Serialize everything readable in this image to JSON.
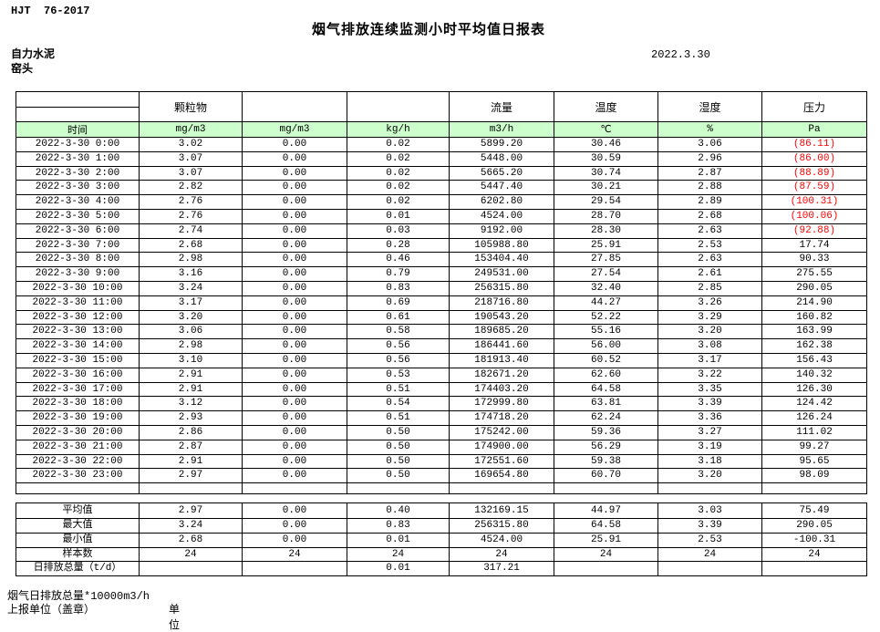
{
  "page": {
    "standard": "HJT  76-2017",
    "title": "烟气排放连续监测小时平均值日报表",
    "date": "2022.3.30",
    "company": "自力水泥",
    "station": "窑头"
  },
  "table": {
    "column_groups": [
      "",
      "颗粒物",
      "",
      "",
      "流量",
      "温度",
      "湿度",
      "压力"
    ],
    "unit_row": [
      "时间",
      "mg/m3",
      "mg/m3",
      "kg/h",
      "m3/h",
      "℃",
      "%",
      "Pa"
    ],
    "rows": [
      [
        "2022-3-30 0:00",
        "3.02",
        "0.00",
        "0.02",
        "5899.20",
        "30.46",
        "3.06",
        "(86.11)"
      ],
      [
        "2022-3-30 1:00",
        "3.07",
        "0.00",
        "0.02",
        "5448.00",
        "30.59",
        "2.96",
        "(86.00)"
      ],
      [
        "2022-3-30 2:00",
        "3.07",
        "0.00",
        "0.02",
        "5665.20",
        "30.74",
        "2.87",
        "(88.89)"
      ],
      [
        "2022-3-30 3:00",
        "2.82",
        "0.00",
        "0.02",
        "5447.40",
        "30.21",
        "2.88",
        "(87.59)"
      ],
      [
        "2022-3-30 4:00",
        "2.76",
        "0.00",
        "0.02",
        "6202.80",
        "29.54",
        "2.89",
        "(100.31)"
      ],
      [
        "2022-3-30 5:00",
        "2.76",
        "0.00",
        "0.01",
        "4524.00",
        "28.70",
        "2.68",
        "(100.06)"
      ],
      [
        "2022-3-30 6:00",
        "2.74",
        "0.00",
        "0.03",
        "9192.00",
        "28.30",
        "2.63",
        "(92.88)"
      ],
      [
        "2022-3-30 7:00",
        "2.68",
        "0.00",
        "0.28",
        "105988.80",
        "25.91",
        "2.53",
        "17.74"
      ],
      [
        "2022-3-30 8:00",
        "2.98",
        "0.00",
        "0.46",
        "153404.40",
        "27.85",
        "2.63",
        "90.33"
      ],
      [
        "2022-3-30 9:00",
        "3.16",
        "0.00",
        "0.79",
        "249531.00",
        "27.54",
        "2.61",
        "275.55"
      ],
      [
        "2022-3-30 10:00",
        "3.24",
        "0.00",
        "0.83",
        "256315.80",
        "32.40",
        "2.85",
        "290.05"
      ],
      [
        "2022-3-30 11:00",
        "3.17",
        "0.00",
        "0.69",
        "218716.80",
        "44.27",
        "3.26",
        "214.90"
      ],
      [
        "2022-3-30 12:00",
        "3.20",
        "0.00",
        "0.61",
        "190543.20",
        "52.22",
        "3.29",
        "160.82"
      ],
      [
        "2022-3-30 13:00",
        "3.06",
        "0.00",
        "0.58",
        "189685.20",
        "55.16",
        "3.20",
        "163.99"
      ],
      [
        "2022-3-30 14:00",
        "2.98",
        "0.00",
        "0.56",
        "186441.60",
        "56.00",
        "3.08",
        "162.38"
      ],
      [
        "2022-3-30 15:00",
        "3.10",
        "0.00",
        "0.56",
        "181913.40",
        "60.52",
        "3.17",
        "156.43"
      ],
      [
        "2022-3-30 16:00",
        "2.91",
        "0.00",
        "0.53",
        "182671.20",
        "62.60",
        "3.22",
        "140.32"
      ],
      [
        "2022-3-30 17:00",
        "2.91",
        "0.00",
        "0.51",
        "174403.20",
        "64.58",
        "3.35",
        "126.30"
      ],
      [
        "2022-3-30 18:00",
        "3.12",
        "0.00",
        "0.54",
        "172999.80",
        "63.81",
        "3.39",
        "124.42"
      ],
      [
        "2022-3-30 19:00",
        "2.93",
        "0.00",
        "0.51",
        "174718.20",
        "62.24",
        "3.36",
        "126.24"
      ],
      [
        "2022-3-30 20:00",
        "2.86",
        "0.00",
        "0.50",
        "175242.00",
        "59.36",
        "3.27",
        "111.02"
      ],
      [
        "2022-3-30 21:00",
        "2.87",
        "0.00",
        "0.50",
        "174900.00",
        "56.29",
        "3.19",
        "99.27"
      ],
      [
        "2022-3-30 22:00",
        "2.91",
        "0.00",
        "0.50",
        "172551.60",
        "59.38",
        "3.18",
        "95.65"
      ],
      [
        "2022-3-30 23:00",
        "2.97",
        "0.00",
        "0.50",
        "169654.80",
        "60.70",
        "3.20",
        "98.09"
      ]
    ],
    "summary_rows": [
      [
        "平均值",
        "2.97",
        "0.00",
        "0.40",
        "132169.15",
        "44.97",
        "3.03",
        "75.49"
      ],
      [
        "最大值",
        "3.24",
        "0.00",
        "0.83",
        "256315.80",
        "64.58",
        "3.39",
        "290.05"
      ],
      [
        "最小值",
        "2.68",
        "0.00",
        "0.01",
        "4524.00",
        "25.91",
        "2.53",
        "-100.31"
      ],
      [
        "样本数",
        "24",
        "24",
        "24",
        "24",
        "24",
        "24",
        "24"
      ],
      [
        "日排放总量（t/d）",
        "",
        "",
        "0.01",
        "317.21",
        "",
        "",
        ""
      ]
    ]
  },
  "footer": {
    "note": "烟气日排放总量*10000m3/h",
    "report_unit": "上报单位（盖章）",
    "unit": "单位"
  },
  "colors": {
    "header_fill": "#ccffcc",
    "negative": "#ff0000",
    "border": "#000000"
  }
}
